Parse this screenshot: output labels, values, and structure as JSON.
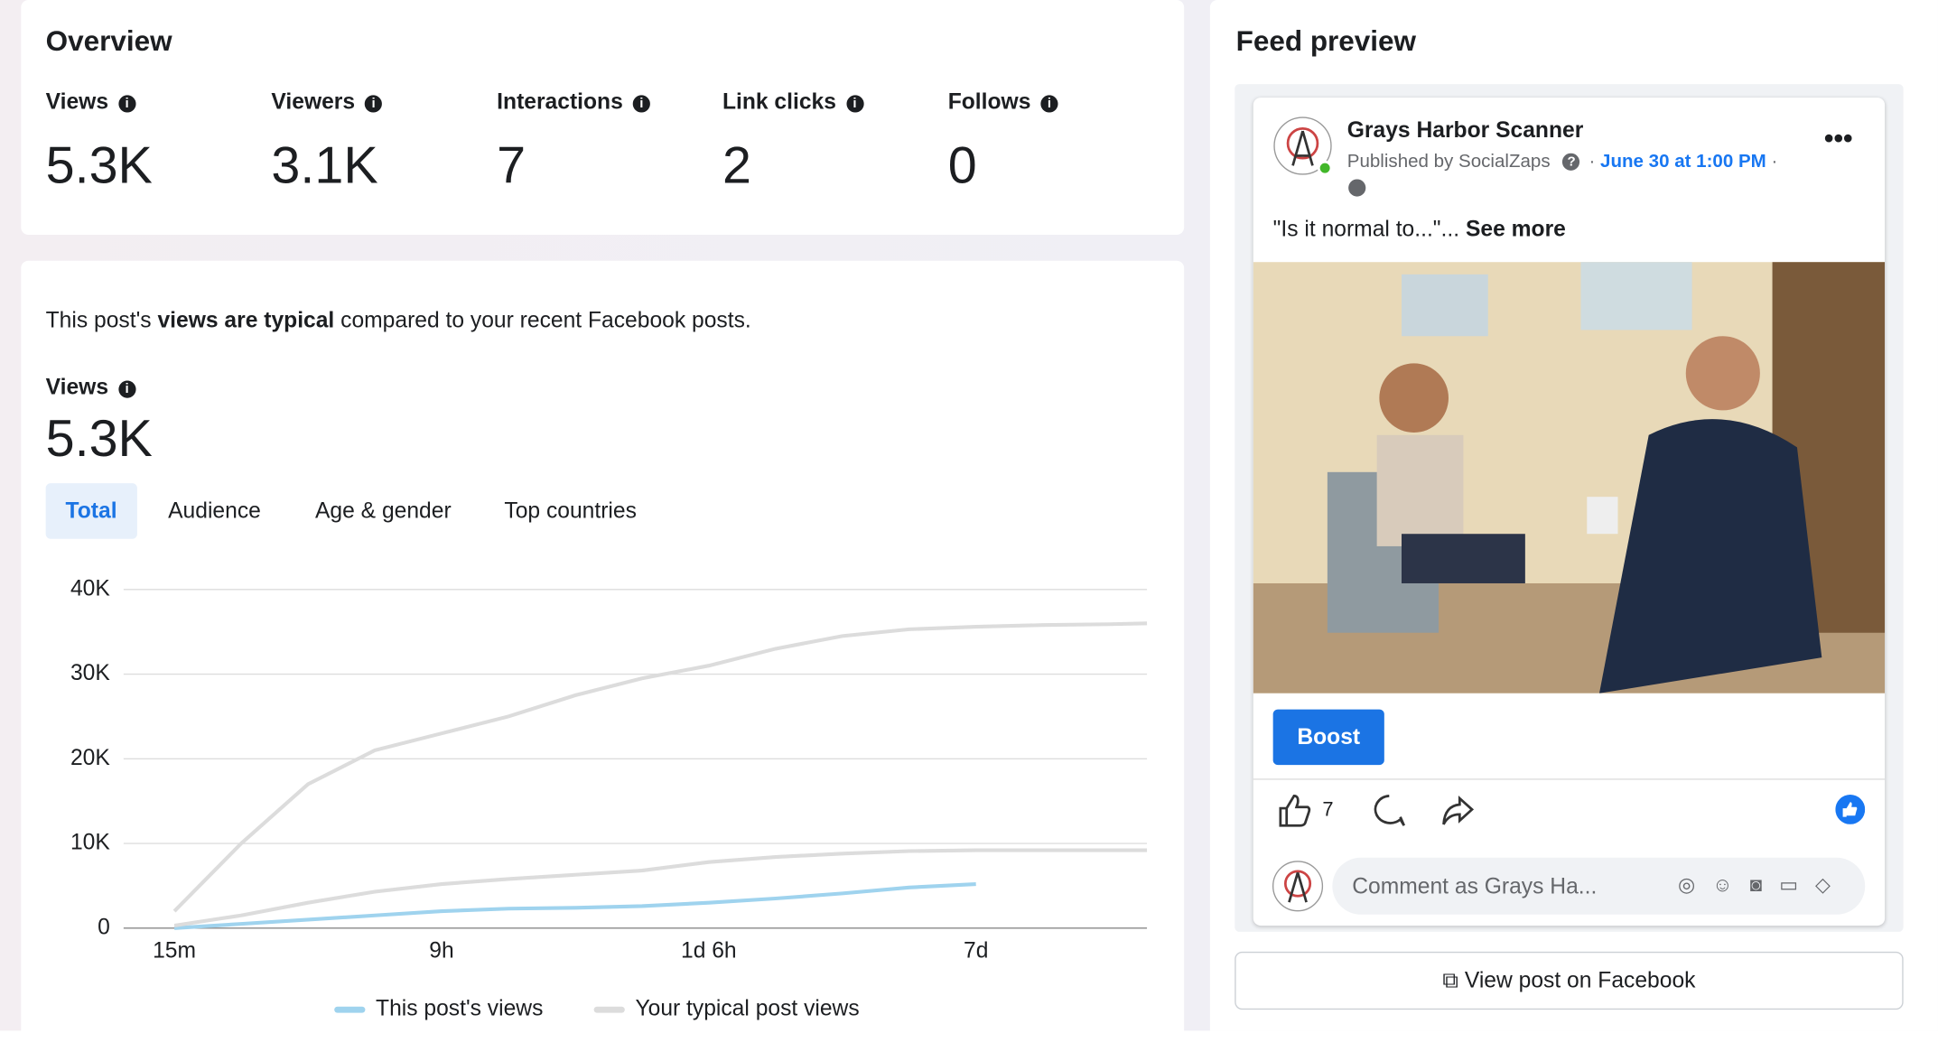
{
  "overview": {
    "title": "Overview",
    "metrics": [
      {
        "label": "Views",
        "value": "5.3K"
      },
      {
        "label": "Viewers",
        "value": "3.1K"
      },
      {
        "label": "Interactions",
        "value": "7"
      },
      {
        "label": "Link clicks",
        "value": "2"
      },
      {
        "label": "Follows",
        "value": "0"
      }
    ]
  },
  "performance": {
    "sentence_start": "This post's ",
    "sentence_bold": "views are typical",
    "sentence_end": " compared to your recent Facebook posts.",
    "metric_label": "Views",
    "metric_value": "5.3K",
    "tabs": [
      "Total",
      "Audience",
      "Age & gender",
      "Top countries"
    ]
  },
  "chart_data": {
    "type": "line",
    "x": [
      0,
      0.25,
      0.5,
      0.75,
      1,
      1.25,
      1.5,
      1.75,
      2,
      2.25,
      2.5,
      2.75,
      3,
      3.25,
      3.5,
      3.64
    ],
    "xlim": [
      -0.19,
      3.64
    ],
    "xticks": [
      {
        "value": 0,
        "label": "15m"
      },
      {
        "value": 1,
        "label": "9h"
      },
      {
        "value": 2,
        "label": "1d 6h"
      },
      {
        "value": 3,
        "label": "7d"
      }
    ],
    "ylim": [
      0,
      40000
    ],
    "yticks": [
      {
        "value": 0,
        "label": "0"
      },
      {
        "value": 10000,
        "label": "10K"
      },
      {
        "value": 20000,
        "label": "20K"
      },
      {
        "value": 30000,
        "label": "30K"
      },
      {
        "value": 40000,
        "label": "40K"
      }
    ],
    "grid": true,
    "series": [
      {
        "name": "This post's views",
        "color": "#9fd3ee",
        "values": [
          0,
          500,
          1000,
          1500,
          2000,
          2300,
          2400,
          2600,
          3000,
          3500,
          4100,
          4800,
          5200,
          null,
          null,
          null
        ]
      },
      {
        "name": "Your typical post views",
        "color": "#dcdcdc",
        "values": [
          300,
          1500,
          3000,
          4300,
          5200,
          5800,
          6300,
          6800,
          7800,
          8400,
          8800,
          9100,
          9200,
          9200,
          9200,
          9200
        ],
        "high": [
          2000,
          10000,
          17000,
          21000,
          23000,
          25000,
          27500,
          29500,
          31000,
          33000,
          34500,
          35300,
          35600,
          35800,
          35900,
          36000
        ]
      }
    ]
  },
  "feed": {
    "title": "Feed preview",
    "page_name": "Grays Harbor Scanner",
    "published_by": "Published by SocialZaps",
    "date": "June 30 at 1:00 PM",
    "caption": "\"Is it normal to...\"...",
    "see_more": "See more",
    "boost": "Boost",
    "like_count": "7",
    "comment_placeholder": "Comment as Grays Ha...",
    "view_post": "View post on Facebook"
  }
}
